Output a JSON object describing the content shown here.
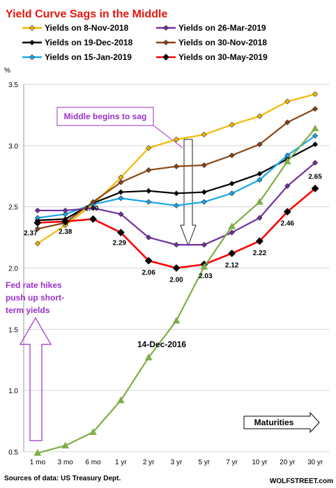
{
  "chart_data": {
    "type": "line",
    "title": "Yield Curve Sags in the Middle",
    "ylabel": "%",
    "ylim": [
      0.5,
      3.5
    ],
    "yticks": [
      "0.5",
      "1.0",
      "1.5",
      "2.0",
      "2.5",
      "3.0",
      "3.5"
    ],
    "categories": [
      "1 mo",
      "3 mo",
      "6 mo",
      "1 yr",
      "2 yr",
      "3 yr",
      "5 yr",
      "7 yr",
      "10 yr",
      "20 yr",
      "30 yr"
    ],
    "grid": "horizontal",
    "series": [
      {
        "name": "Yields on 8-Nov-2018",
        "color": "#f5b800",
        "marker": "diamond",
        "values": [
          2.2,
          2.35,
          2.52,
          2.74,
          2.98,
          3.05,
          3.09,
          3.17,
          3.24,
          3.36,
          3.42
        ]
      },
      {
        "name": "Yields on 19-Dec-2018",
        "color": "#000000",
        "marker": "diamond",
        "values": [
          2.39,
          2.4,
          2.53,
          2.62,
          2.63,
          2.61,
          2.62,
          2.69,
          2.77,
          2.89,
          3.01
        ]
      },
      {
        "name": "Yields on 15-Jan-2019",
        "color": "#18a8e8",
        "marker": "diamond",
        "values": [
          2.41,
          2.44,
          2.52,
          2.57,
          2.54,
          2.51,
          2.54,
          2.61,
          2.72,
          2.92,
          3.08
        ]
      },
      {
        "name": "Yields on 26-Mar-2019",
        "color": "#7030a0",
        "marker": "diamond",
        "values": [
          2.47,
          2.47,
          2.49,
          2.44,
          2.25,
          2.19,
          2.19,
          2.29,
          2.41,
          2.67,
          2.86
        ]
      },
      {
        "name": "Yields on 30-Nov-2018",
        "color": "#8b4513",
        "marker": "diamond",
        "values": [
          2.32,
          2.37,
          2.54,
          2.7,
          2.8,
          2.83,
          2.84,
          2.92,
          3.01,
          3.19,
          3.3
        ]
      },
      {
        "name": "Yields on 30-May-2019",
        "color": "#ff0000",
        "marker": "diamond-black",
        "values": [
          2.37,
          2.38,
          2.4,
          2.29,
          2.06,
          2.0,
          2.03,
          2.12,
          2.22,
          2.46,
          2.65
        ]
      },
      {
        "name": "14-Dec-2016",
        "color": "#7fae45",
        "marker": "triangle",
        "values": [
          0.49,
          0.55,
          0.66,
          0.92,
          1.27,
          1.57,
          2.01,
          2.34,
          2.54,
          2.87,
          3.14
        ]
      }
    ],
    "data_labels": {
      "series": "Yields on 30-May-2019",
      "labels": [
        "2.37",
        "2.38",
        "2.40",
        "2.29",
        "2.06",
        "2.00",
        "2.03",
        "2.12",
        "2.22",
        "2.46",
        "2.65"
      ]
    },
    "annotations": {
      "sag": "Middle begins to sag",
      "fed": [
        "Fed rate hikes",
        "push up short-",
        "term yields"
      ],
      "series_label": "14-Dec-2016",
      "maturities": "Maturities"
    }
  },
  "footer": {
    "source": "Sources of data: US Treasury Dept.",
    "brand": "WOLFSTREET.com"
  },
  "colors": {
    "title": "#e4160e",
    "annotation_purple": "#9b30c8",
    "grid": "#d4d4d4"
  }
}
